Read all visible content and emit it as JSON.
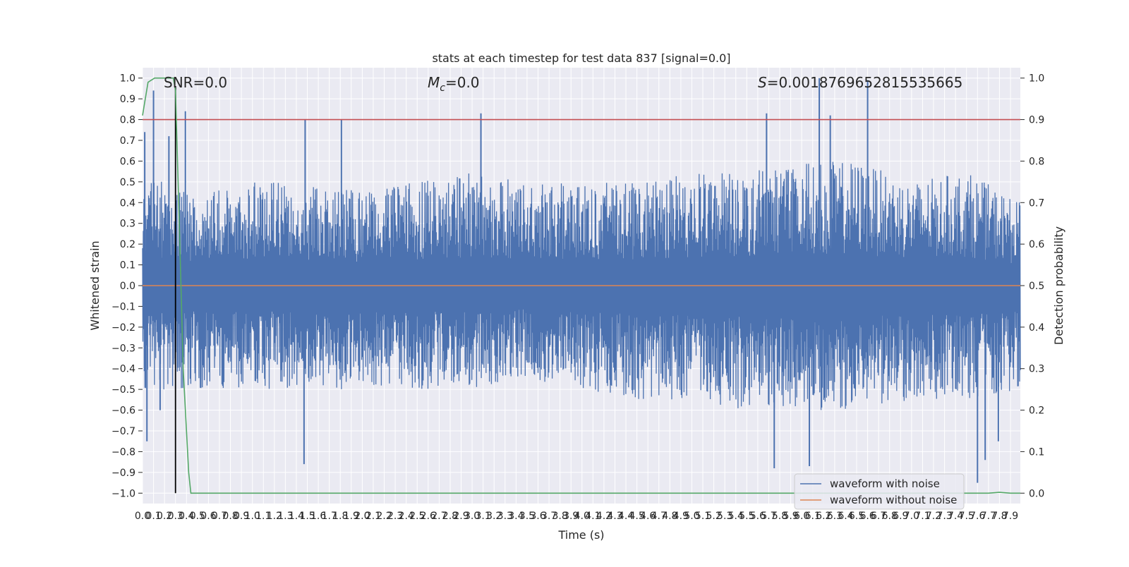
{
  "chart_data": {
    "type": "line",
    "title": "stats at each timestep for test data 837 [signal=0.0]",
    "xlabel": "Time (s)",
    "ylabel": "Whitened strain",
    "y2label": "Detection probability",
    "xlim": [
      0.0,
      7.99
    ],
    "ylim": [
      -1.05,
      1.05
    ],
    "y2lim": [
      -0.025,
      1.025
    ],
    "x_ticks": [
      0.0,
      0.1,
      0.2,
      0.3,
      0.4,
      0.5,
      0.6,
      0.7,
      0.8,
      0.9,
      1.0,
      1.1,
      1.2,
      1.3,
      1.4,
      1.5,
      1.6,
      1.7,
      1.8,
      1.9,
      2.0,
      2.1,
      2.2,
      2.3,
      2.4,
      2.5,
      2.6,
      2.7,
      2.8,
      2.9,
      3.0,
      3.1,
      3.2,
      3.3,
      3.4,
      3.5,
      3.6,
      3.7,
      3.8,
      3.9,
      4.0,
      4.1,
      4.2,
      4.3,
      4.4,
      4.5,
      4.6,
      4.7,
      4.8,
      4.9,
      5.0,
      5.1,
      5.2,
      5.3,
      5.4,
      5.5,
      5.6,
      5.7,
      5.8,
      5.9,
      6.0,
      6.1,
      6.2,
      6.3,
      6.4,
      6.5,
      6.6,
      6.7,
      6.8,
      6.9,
      7.0,
      7.1,
      7.2,
      7.3,
      7.4,
      7.5,
      7.6,
      7.7,
      7.8,
      7.9
    ],
    "y_ticks": [
      -1.0,
      -0.9,
      -0.8,
      -0.7,
      -0.6,
      -0.5,
      -0.4,
      -0.3,
      -0.2,
      -0.1,
      0.0,
      0.1,
      0.2,
      0.3,
      0.4,
      0.5,
      0.6,
      0.7,
      0.8,
      0.9,
      1.0
    ],
    "y2_ticks": [
      0.0,
      0.1,
      0.2,
      0.3,
      0.4,
      0.5,
      0.6,
      0.7,
      0.8,
      0.9,
      1.0
    ],
    "grid": true,
    "legend_position": "lower right",
    "annotations": {
      "snr": "SNR=0.0",
      "mc": "=0.0",
      "s": "=0.0018769652815535665"
    },
    "threshold": {
      "value": 0.9,
      "axis": "y2",
      "color": "#c44e52"
    },
    "marker_line": {
      "x": 0.3,
      "color": "#000000"
    },
    "series": [
      {
        "name": "waveform with noise",
        "color": "#4c72b0",
        "axis": "y",
        "style": "dense noise, envelope roughly -0.6..0.6 with peaks near ±1.0",
        "peaks": [
          {
            "x": 0.02,
            "y": 0.74
          },
          {
            "x": 0.04,
            "y": -0.75
          },
          {
            "x": 0.1,
            "y": 0.94
          },
          {
            "x": 0.16,
            "y": -0.6
          },
          {
            "x": 0.24,
            "y": 0.72
          },
          {
            "x": 0.39,
            "y": 0.84
          },
          {
            "x": 1.48,
            "y": 0.8
          },
          {
            "x": 1.47,
            "y": -0.86
          },
          {
            "x": 1.81,
            "y": 0.8
          },
          {
            "x": 3.08,
            "y": 0.83
          },
          {
            "x": 5.68,
            "y": 0.83
          },
          {
            "x": 5.75,
            "y": -0.88
          },
          {
            "x": 6.16,
            "y": 1.0
          },
          {
            "x": 6.07,
            "y": -0.87
          },
          {
            "x": 6.26,
            "y": 0.82
          },
          {
            "x": 6.6,
            "y": 0.99
          },
          {
            "x": 7.6,
            "y": -0.95
          },
          {
            "x": 7.67,
            "y": -0.84
          },
          {
            "x": 7.79,
            "y": -0.75
          }
        ],
        "envelope": {
          "x": [
            0.0,
            0.5,
            1.0,
            1.5,
            2.0,
            2.5,
            3.0,
            3.5,
            4.0,
            4.5,
            5.0,
            5.5,
            6.0,
            6.5,
            7.0,
            7.5,
            7.99
          ],
          "upper": [
            0.55,
            0.45,
            0.5,
            0.5,
            0.45,
            0.5,
            0.55,
            0.5,
            0.5,
            0.5,
            0.55,
            0.55,
            0.6,
            0.6,
            0.5,
            0.55,
            0.4
          ],
          "lower": [
            -0.5,
            -0.5,
            -0.5,
            -0.5,
            -0.5,
            -0.5,
            -0.5,
            -0.45,
            -0.5,
            -0.55,
            -0.55,
            -0.6,
            -0.6,
            -0.6,
            -0.55,
            -0.55,
            -0.5
          ]
        }
      },
      {
        "name": "waveform without noise",
        "color": "#dd8452",
        "axis": "y",
        "x": [
          0.0,
          7.99
        ],
        "y": [
          0.0,
          0.0
        ]
      },
      {
        "name": "",
        "color": "#55a868",
        "axis": "y2",
        "x": [
          0.0,
          0.05,
          0.11,
          0.28,
          0.3,
          0.34,
          0.37,
          0.42,
          0.44,
          7.5,
          7.7,
          7.8,
          7.9,
          7.99
        ],
        "y": [
          0.91,
          0.99,
          1.0,
          1.0,
          0.97,
          0.6,
          0.3,
          0.05,
          0.0,
          0.0,
          0.0,
          0.002,
          0.0,
          0.0
        ]
      }
    ]
  }
}
